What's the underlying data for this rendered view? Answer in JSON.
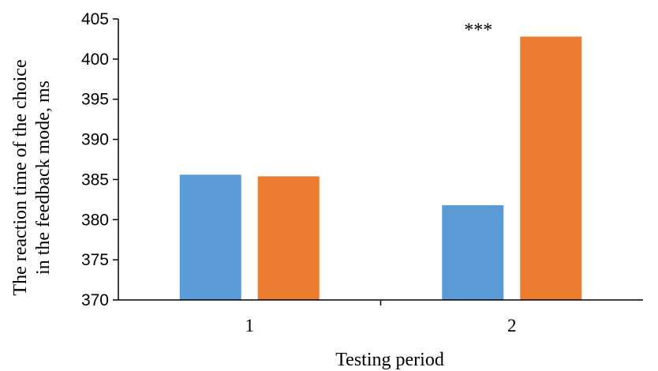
{
  "chart_data": {
    "type": "bar",
    "title": "",
    "xlabel": "Testing period",
    "ylabel_lines": [
      "The reaction time of the choice",
      "in the feedback mode, ms"
    ],
    "categories": [
      "1",
      "2"
    ],
    "series": [
      {
        "values": [
          385.6,
          381.8
        ],
        "color": "#5B9BD5"
      },
      {
        "values": [
          385.4,
          402.8
        ],
        "color": "#ED7D31"
      }
    ],
    "ylim": [
      370,
      405
    ],
    "yticks": [
      370,
      375,
      380,
      385,
      390,
      395,
      400,
      405
    ],
    "grid": false,
    "legend": "none",
    "annotations": [
      {
        "category_index": 1,
        "series_index": 1,
        "text": "***"
      }
    ]
  }
}
